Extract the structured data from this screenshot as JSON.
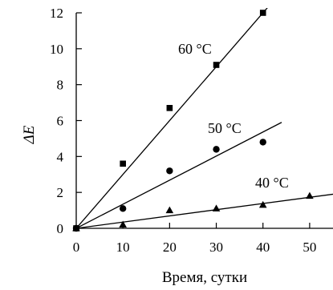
{
  "chart_data": {
    "type": "scatter",
    "title": "",
    "xlabel": "Время, сутки",
    "ylabel": "ΔE",
    "xlim": [
      0,
      55
    ],
    "ylim": [
      0,
      12
    ],
    "xticks": [
      "0",
      "10",
      "20",
      "30",
      "40",
      "50"
    ],
    "yticks": [
      "0",
      "2",
      "4",
      "6",
      "8",
      "10",
      "12"
    ],
    "grid": false,
    "series": [
      {
        "name": "60 °C",
        "marker": "square",
        "x": [
          0,
          10,
          20,
          30,
          40
        ],
        "y": [
          0,
          3.6,
          6.7,
          9.1,
          12.0
        ],
        "trend_x": [
          0,
          43
        ],
        "trend_y": [
          0,
          12.9
        ]
      },
      {
        "name": "50 °C",
        "marker": "circle",
        "x": [
          0,
          10,
          20,
          30,
          40
        ],
        "y": [
          0,
          1.1,
          3.2,
          4.4,
          4.8
        ],
        "trend_x": [
          0,
          44
        ],
        "trend_y": [
          0,
          5.9
        ]
      },
      {
        "name": "40 °C",
        "marker": "triangle",
        "x": [
          0,
          10,
          20,
          30,
          40,
          50
        ],
        "y": [
          0,
          0.2,
          1.0,
          1.1,
          1.3,
          1.8
        ],
        "trend_x": [
          0,
          55
        ],
        "trend_y": [
          0,
          1.9
        ]
      }
    ],
    "colors": {
      "points": "#000000",
      "lines": "#000000"
    }
  }
}
